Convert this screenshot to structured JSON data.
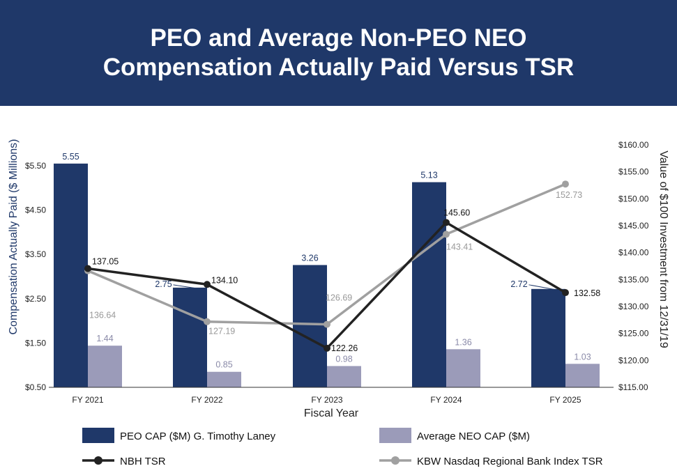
{
  "header": {
    "title_line1": "PEO and Average Non-PEO NEO",
    "title_line2": "Compensation Actually Paid Versus TSR"
  },
  "colors": {
    "header_bg": "#1f3869",
    "peo_bar": "#1f3869",
    "neo_bar": "#9b9bb9",
    "nbh_line": "#222222",
    "kbw_line": "#a0a0a0"
  },
  "chart_data": {
    "type": "bar",
    "title": "PEO and Average Non-PEO NEO Compensation Actually Paid Versus TSR",
    "xlabel": "Fiscal Year",
    "ylabel": "Compensation Actually Paid ($ Millions)",
    "y2label": "Value of $100 Investment from 12/31/19",
    "categories": [
      "FY 2021",
      "FY 2022",
      "FY 2023",
      "FY 2024",
      "FY 2025"
    ],
    "ylim": [
      0.5,
      5.5
    ],
    "y_ticks": [
      "$0.50",
      "$1.50",
      "$2.50",
      "$3.50",
      "$4.50",
      "$5.50"
    ],
    "y_tick_values": [
      0.5,
      1.5,
      2.5,
      3.5,
      4.5,
      5.5
    ],
    "y2lim": [
      115,
      160
    ],
    "y2_ticks": [
      "$115.00",
      "$120.00",
      "$125.00",
      "$130.00",
      "$135.00",
      "$140.00",
      "$145.00",
      "$150.00",
      "$155.00",
      "$160.00"
    ],
    "y2_tick_values": [
      115,
      120,
      125,
      130,
      135,
      140,
      145,
      150,
      155,
      160
    ],
    "bar_series": [
      {
        "name": "PEO CAP ($M) G. Timothy Laney",
        "values": [
          5.55,
          2.75,
          3.26,
          5.13,
          2.72
        ],
        "labels": [
          "5.55",
          "2.75",
          "3.26",
          "5.13",
          "2.72"
        ]
      },
      {
        "name": "Average NEO CAP ($M)",
        "values": [
          1.44,
          0.85,
          0.98,
          1.36,
          1.03
        ],
        "labels": [
          "1.44",
          "0.85",
          "0.98",
          "1.36",
          "1.03"
        ]
      }
    ],
    "line_series": [
      {
        "name": "NBH TSR",
        "axis": "right",
        "values": [
          137.05,
          134.1,
          122.26,
          145.6,
          132.58
        ],
        "labels": [
          "137.05",
          "134.10",
          "122.26",
          "145.60",
          "132.58"
        ]
      },
      {
        "name": "KBW Nasdaq Regional Bank Index TSR",
        "axis": "right",
        "values": [
          136.64,
          127.19,
          126.69,
          143.41,
          152.73
        ],
        "labels": [
          "136.64",
          "127.19",
          "126.69",
          "143.41",
          "152.73"
        ]
      }
    ],
    "legend": [
      {
        "label": "PEO CAP ($M) G. Timothy Laney",
        "kind": "bar"
      },
      {
        "label": "Average NEO CAP ($M)",
        "kind": "bar"
      },
      {
        "label": "NBH TSR",
        "kind": "line"
      },
      {
        "label": "KBW Nasdaq Regional Bank Index TSR",
        "kind": "line"
      }
    ]
  }
}
